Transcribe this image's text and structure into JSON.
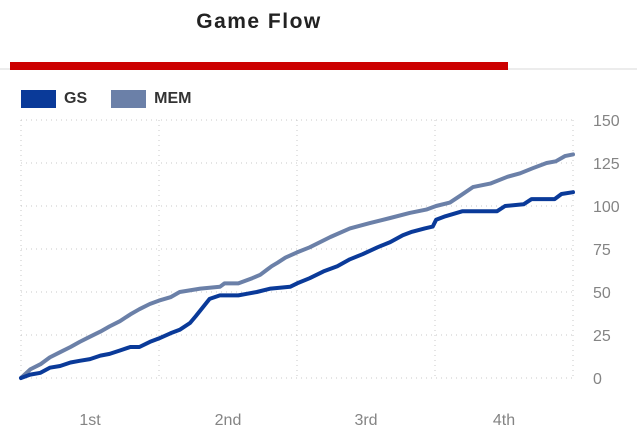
{
  "header": {
    "title": "Game Flow",
    "accent_bar_color": "#cc0000"
  },
  "legend": [
    {
      "label": "GS",
      "color": "#0a3a99"
    },
    {
      "label": "MEM",
      "color": "#6b80a8"
    }
  ],
  "chart_data": {
    "type": "line",
    "title": "Game Flow",
    "x_tick_labels": [
      "1st",
      "2nd",
      "3rd",
      "4th"
    ],
    "x_range": [
      0,
      48
    ],
    "y_ticks": [
      0,
      25,
      50,
      75,
      100,
      125,
      150
    ],
    "ylim": [
      0,
      150
    ],
    "y_axis_side": "right",
    "grid": "dotted",
    "grid_color": "#c9c9c9",
    "axis_label_color": "#848484",
    "legend_position": "top-left",
    "series": [
      {
        "name": "GS",
        "color": "#0a3a99",
        "final_score": 108,
        "points": [
          [
            0,
            0
          ],
          [
            0.8,
            2
          ],
          [
            1.7,
            3
          ],
          [
            2.5,
            6
          ],
          [
            3.4,
            7
          ],
          [
            4.3,
            9
          ],
          [
            5.1,
            10
          ],
          [
            6,
            11
          ],
          [
            6.9,
            13
          ],
          [
            7.7,
            14
          ],
          [
            8.6,
            16
          ],
          [
            9.5,
            18
          ],
          [
            10.3,
            18
          ],
          [
            11.2,
            21
          ],
          [
            12,
            23
          ],
          [
            13,
            26
          ],
          [
            13.8,
            28
          ],
          [
            14.7,
            32
          ],
          [
            15.2,
            36
          ],
          [
            15.8,
            41
          ],
          [
            16.4,
            46
          ],
          [
            17.3,
            48
          ],
          [
            18.9,
            48
          ],
          [
            19.7,
            49
          ],
          [
            20.5,
            50
          ],
          [
            21.7,
            52
          ],
          [
            23.4,
            53
          ],
          [
            24,
            55
          ],
          [
            25.1,
            58
          ],
          [
            26.3,
            62
          ],
          [
            27.5,
            65
          ],
          [
            28.6,
            69
          ],
          [
            29.7,
            72
          ],
          [
            31,
            76
          ],
          [
            32.1,
            79
          ],
          [
            33.2,
            83
          ],
          [
            34,
            85
          ],
          [
            35.1,
            87
          ],
          [
            35.8,
            88
          ],
          [
            36.1,
            92
          ],
          [
            36.9,
            94
          ],
          [
            38.4,
            97
          ],
          [
            41.4,
            97
          ],
          [
            42.1,
            100
          ],
          [
            43.7,
            101
          ],
          [
            44.4,
            104
          ],
          [
            46.4,
            104
          ],
          [
            47,
            107
          ],
          [
            48,
            108
          ]
        ]
      },
      {
        "name": "MEM",
        "color": "#6b80a8",
        "final_score": 130,
        "points": [
          [
            0,
            0
          ],
          [
            0.8,
            5
          ],
          [
            1.7,
            8
          ],
          [
            2.5,
            12
          ],
          [
            3.4,
            15
          ],
          [
            4.3,
            18
          ],
          [
            5.1,
            21
          ],
          [
            6,
            24
          ],
          [
            6.9,
            27
          ],
          [
            7.7,
            30
          ],
          [
            8.6,
            33
          ],
          [
            9.5,
            37
          ],
          [
            10.3,
            40
          ],
          [
            11.2,
            43
          ],
          [
            12,
            45
          ],
          [
            13,
            47
          ],
          [
            13.8,
            50
          ],
          [
            15.6,
            52
          ],
          [
            17.3,
            53
          ],
          [
            17.7,
            55
          ],
          [
            18.9,
            55
          ],
          [
            20.1,
            58
          ],
          [
            20.8,
            60
          ],
          [
            21.4,
            63
          ],
          [
            21.8,
            65
          ],
          [
            22.3,
            67
          ],
          [
            23,
            70
          ],
          [
            24,
            73
          ],
          [
            25.1,
            76
          ],
          [
            26.9,
            82
          ],
          [
            28.6,
            87
          ],
          [
            30.3,
            90
          ],
          [
            32.1,
            93
          ],
          [
            33.8,
            96
          ],
          [
            35.3,
            98
          ],
          [
            36.1,
            100
          ],
          [
            37.3,
            102
          ],
          [
            38.2,
            106
          ],
          [
            39.3,
            111
          ],
          [
            40.8,
            113
          ],
          [
            42.3,
            117
          ],
          [
            43.4,
            119
          ],
          [
            44.5,
            122
          ],
          [
            45.7,
            125
          ],
          [
            46.5,
            126
          ],
          [
            47.3,
            129
          ],
          [
            48,
            130
          ]
        ]
      }
    ]
  }
}
